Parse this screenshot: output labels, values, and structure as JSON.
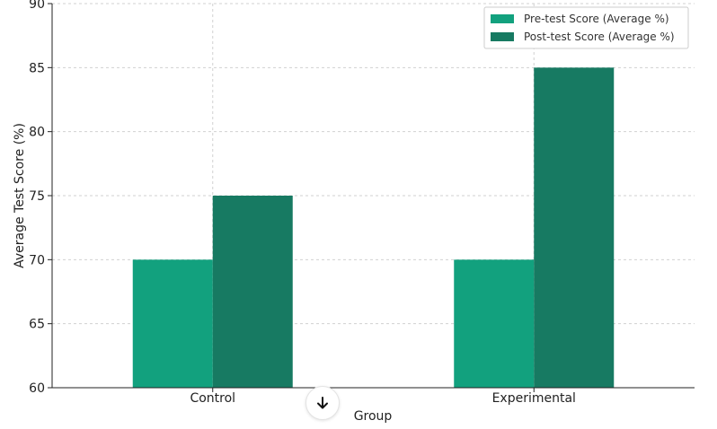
{
  "chart_data": {
    "type": "bar",
    "title": "",
    "xlabel": "Group",
    "ylabel": "Average Test Score (%)",
    "categories": [
      "Control",
      "Experimental"
    ],
    "ylim": [
      60,
      90
    ],
    "yticks": [
      60,
      65,
      70,
      75,
      80,
      85,
      90
    ],
    "grid": true,
    "legend_position": "top-right",
    "series": [
      {
        "name": "Pre-test Score (Average %)",
        "values": [
          70,
          70
        ],
        "color": "#12a17e"
      },
      {
        "name": "Post-test Score (Average %)",
        "values": [
          75,
          85
        ],
        "color": "#177a62"
      }
    ]
  },
  "scroll_button": {
    "icon": "arrow-down-icon"
  }
}
